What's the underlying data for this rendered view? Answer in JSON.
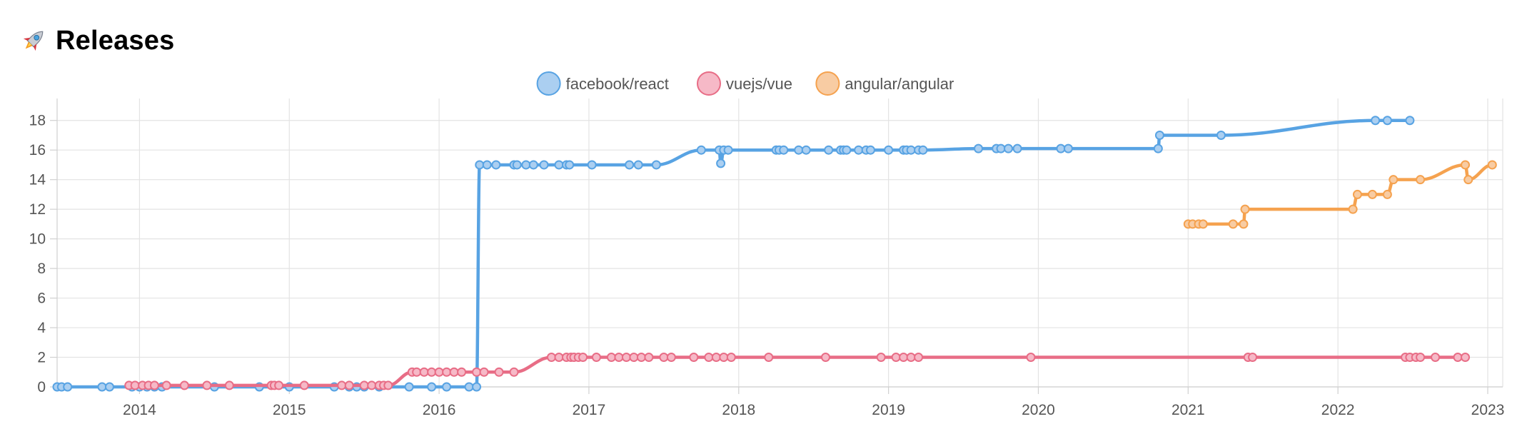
{
  "header": {
    "icon": "rocket-icon",
    "title": "Releases"
  },
  "chart_data": {
    "type": "line",
    "title": "Releases",
    "xlabel": "",
    "ylabel": "",
    "xlim": [
      2013.45,
      2023.1
    ],
    "ylim": [
      0,
      19
    ],
    "yticks": [
      0,
      2,
      4,
      6,
      8,
      10,
      12,
      14,
      16,
      18
    ],
    "xticks": [
      {
        "value": 2014,
        "label": "2014"
      },
      {
        "value": 2015,
        "label": "2015"
      },
      {
        "value": 2016,
        "label": "2016"
      },
      {
        "value": 2017,
        "label": "2017"
      },
      {
        "value": 2018,
        "label": "2018"
      },
      {
        "value": 2019,
        "label": "2019"
      },
      {
        "value": 2020,
        "label": "2020"
      },
      {
        "value": 2021,
        "label": "2021"
      },
      {
        "value": 2022,
        "label": "2022"
      },
      {
        "value": 2023,
        "label": "2023"
      }
    ],
    "grid": true,
    "legend_position": "top",
    "series": [
      {
        "name": "facebook/react",
        "color": "#58a3e3",
        "fill": "#abcff1",
        "points": [
          [
            2013.45,
            0
          ],
          [
            2013.48,
            0
          ],
          [
            2013.52,
            0
          ],
          [
            2013.75,
            0
          ],
          [
            2013.8,
            0
          ],
          [
            2013.95,
            0
          ],
          [
            2014.0,
            0
          ],
          [
            2014.05,
            0
          ],
          [
            2014.1,
            0
          ],
          [
            2014.15,
            0
          ],
          [
            2014.5,
            0
          ],
          [
            2014.8,
            0
          ],
          [
            2015.0,
            0
          ],
          [
            2015.3,
            0
          ],
          [
            2015.4,
            0
          ],
          [
            2015.45,
            0
          ],
          [
            2015.5,
            0
          ],
          [
            2015.6,
            0
          ],
          [
            2015.8,
            0
          ],
          [
            2015.95,
            0
          ],
          [
            2016.05,
            0
          ],
          [
            2016.2,
            0
          ],
          [
            2016.25,
            0
          ],
          [
            2016.27,
            15
          ],
          [
            2016.32,
            15
          ],
          [
            2016.38,
            15
          ],
          [
            2016.5,
            15
          ],
          [
            2016.52,
            15
          ],
          [
            2016.58,
            15
          ],
          [
            2016.63,
            15
          ],
          [
            2016.7,
            15
          ],
          [
            2016.8,
            15
          ],
          [
            2016.85,
            15
          ],
          [
            2016.87,
            15
          ],
          [
            2017.02,
            15
          ],
          [
            2017.27,
            15
          ],
          [
            2017.33,
            15
          ],
          [
            2017.45,
            15
          ],
          [
            2017.75,
            16
          ],
          [
            2017.87,
            16
          ],
          [
            2017.88,
            15.1
          ],
          [
            2017.9,
            16
          ],
          [
            2017.93,
            16
          ],
          [
            2018.25,
            16
          ],
          [
            2018.27,
            16
          ],
          [
            2018.3,
            16
          ],
          [
            2018.4,
            16
          ],
          [
            2018.45,
            16
          ],
          [
            2018.6,
            16
          ],
          [
            2018.68,
            16
          ],
          [
            2018.7,
            16
          ],
          [
            2018.72,
            16
          ],
          [
            2018.8,
            16
          ],
          [
            2018.85,
            16
          ],
          [
            2018.88,
            16
          ],
          [
            2019.0,
            16
          ],
          [
            2019.1,
            16
          ],
          [
            2019.12,
            16
          ],
          [
            2019.15,
            16
          ],
          [
            2019.2,
            16
          ],
          [
            2019.23,
            16
          ],
          [
            2019.6,
            16.1
          ],
          [
            2019.72,
            16.1
          ],
          [
            2019.75,
            16.1
          ],
          [
            2019.8,
            16.1
          ],
          [
            2019.86,
            16.1
          ],
          [
            2020.15,
            16.1
          ],
          [
            2020.2,
            16.1
          ],
          [
            2020.8,
            16.1
          ],
          [
            2020.81,
            17
          ],
          [
            2021.22,
            17
          ],
          [
            2022.25,
            18
          ],
          [
            2022.33,
            18
          ],
          [
            2022.48,
            18
          ]
        ]
      },
      {
        "name": "vuejs/vue",
        "color": "#e86d86",
        "fill": "#f6b9c7",
        "points": [
          [
            2013.93,
            0.1
          ],
          [
            2013.97,
            0.1
          ],
          [
            2014.02,
            0.1
          ],
          [
            2014.06,
            0.1
          ],
          [
            2014.1,
            0.1
          ],
          [
            2014.18,
            0.1
          ],
          [
            2014.3,
            0.1
          ],
          [
            2014.45,
            0.1
          ],
          [
            2014.6,
            0.1
          ],
          [
            2014.88,
            0.1
          ],
          [
            2014.9,
            0.1
          ],
          [
            2014.93,
            0.1
          ],
          [
            2015.1,
            0.1
          ],
          [
            2015.35,
            0.1
          ],
          [
            2015.4,
            0.1
          ],
          [
            2015.5,
            0.1
          ],
          [
            2015.55,
            0.1
          ],
          [
            2015.6,
            0.1
          ],
          [
            2015.63,
            0.1
          ],
          [
            2015.66,
            0.1
          ],
          [
            2015.82,
            1
          ],
          [
            2015.85,
            1
          ],
          [
            2015.9,
            1
          ],
          [
            2015.95,
            1
          ],
          [
            2016.0,
            1
          ],
          [
            2016.05,
            1
          ],
          [
            2016.1,
            1
          ],
          [
            2016.15,
            1
          ],
          [
            2016.25,
            1
          ],
          [
            2016.3,
            1
          ],
          [
            2016.4,
            1
          ],
          [
            2016.5,
            1
          ],
          [
            2016.75,
            2
          ],
          [
            2016.8,
            2
          ],
          [
            2016.85,
            2
          ],
          [
            2016.88,
            2
          ],
          [
            2016.9,
            2
          ],
          [
            2016.93,
            2
          ],
          [
            2016.96,
            2
          ],
          [
            2017.05,
            2
          ],
          [
            2017.15,
            2
          ],
          [
            2017.2,
            2
          ],
          [
            2017.25,
            2
          ],
          [
            2017.3,
            2
          ],
          [
            2017.35,
            2
          ],
          [
            2017.4,
            2
          ],
          [
            2017.5,
            2
          ],
          [
            2017.55,
            2
          ],
          [
            2017.7,
            2
          ],
          [
            2017.8,
            2
          ],
          [
            2017.85,
            2
          ],
          [
            2017.9,
            2
          ],
          [
            2017.95,
            2
          ],
          [
            2018.2,
            2
          ],
          [
            2018.58,
            2
          ],
          [
            2018.95,
            2
          ],
          [
            2019.05,
            2
          ],
          [
            2019.1,
            2
          ],
          [
            2019.15,
            2
          ],
          [
            2019.2,
            2
          ],
          [
            2019.95,
            2
          ],
          [
            2021.4,
            2
          ],
          [
            2021.43,
            2
          ],
          [
            2022.45,
            2
          ],
          [
            2022.48,
            2
          ],
          [
            2022.52,
            2
          ],
          [
            2022.55,
            2
          ],
          [
            2022.65,
            2
          ],
          [
            2022.8,
            2
          ],
          [
            2022.85,
            2
          ]
        ]
      },
      {
        "name": "angular/angular",
        "color": "#f5a24f",
        "fill": "#f8cca3",
        "points": [
          [
            2021.0,
            11
          ],
          [
            2021.03,
            11
          ],
          [
            2021.07,
            11
          ],
          [
            2021.1,
            11
          ],
          [
            2021.3,
            11
          ],
          [
            2021.37,
            11
          ],
          [
            2021.38,
            12
          ],
          [
            2022.1,
            12
          ],
          [
            2022.13,
            13
          ],
          [
            2022.23,
            13
          ],
          [
            2022.33,
            13
          ],
          [
            2022.37,
            14
          ],
          [
            2022.55,
            14
          ],
          [
            2022.85,
            15
          ],
          [
            2022.87,
            14
          ],
          [
            2023.03,
            15
          ]
        ]
      }
    ]
  }
}
